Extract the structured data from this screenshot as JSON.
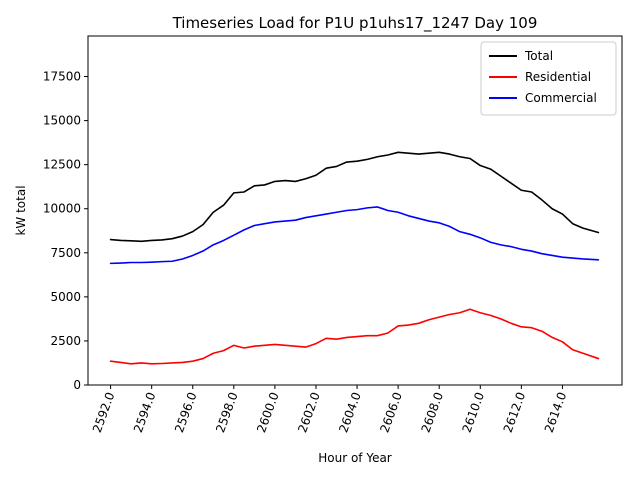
{
  "chart_data": {
    "type": "line",
    "title": "Timeseries Load for P1U p1uhs17_1247  Day 109",
    "xlabel": "Hour of Year",
    "ylabel": "kW total",
    "xlim": [
      2590.9,
      2616.9
    ],
    "ylim": [
      0,
      19800
    ],
    "xticks": [
      2592,
      2594,
      2596,
      2598,
      2600,
      2602,
      2604,
      2606,
      2608,
      2610,
      2612,
      2614
    ],
    "xtick_labels": [
      "2592.0",
      "2594.0",
      "2596.0",
      "2598.0",
      "2600.0",
      "2602.0",
      "2604.0",
      "2606.0",
      "2608.0",
      "2610.0",
      "2612.0",
      "2614.0"
    ],
    "yticks": [
      0,
      2500,
      5000,
      7500,
      10000,
      12500,
      15000,
      17500
    ],
    "ytick_labels": [
      "0",
      "2500",
      "5000",
      "7500",
      "10000",
      "12500",
      "15000",
      "17500"
    ],
    "legend_position": "top-right",
    "x": [
      2592.0,
      2592.5,
      2593.0,
      2593.5,
      2594.0,
      2594.5,
      2595.0,
      2595.5,
      2596.0,
      2596.5,
      2597.0,
      2597.5,
      2598.0,
      2598.5,
      2599.0,
      2599.5,
      2600.0,
      2600.5,
      2601.0,
      2601.5,
      2602.0,
      2602.5,
      2603.0,
      2603.5,
      2604.0,
      2604.5,
      2605.0,
      2605.5,
      2606.0,
      2606.5,
      2607.0,
      2607.5,
      2608.0,
      2608.5,
      2609.0,
      2609.5,
      2610.0,
      2610.5,
      2611.0,
      2611.5,
      2612.0,
      2612.5,
      2613.0,
      2613.5,
      2614.0,
      2614.5,
      2615.0,
      2615.75
    ],
    "series": [
      {
        "name": "Total",
        "color": "#000000",
        "values": [
          8250,
          8200,
          8180,
          8150,
          8200,
          8230,
          8300,
          8450,
          8700,
          9100,
          9800,
          10200,
          10900,
          10950,
          11300,
          11350,
          11550,
          11600,
          11550,
          11700,
          11900,
          12300,
          12400,
          12650,
          12700,
          12800,
          12950,
          13050,
          13200,
          13150,
          13100,
          13150,
          13200,
          13100,
          12950,
          12850,
          12450,
          12250,
          11850,
          11450,
          11050,
          10950,
          10500,
          10000,
          9700,
          9150,
          8900,
          8650
        ]
      },
      {
        "name": "Residential",
        "color": "#ff0000",
        "values": [
          1350,
          1280,
          1200,
          1250,
          1200,
          1220,
          1250,
          1280,
          1350,
          1500,
          1800,
          1950,
          2250,
          2100,
          2200,
          2250,
          2300,
          2250,
          2200,
          2150,
          2350,
          2650,
          2600,
          2700,
          2750,
          2800,
          2800,
          2950,
          3350,
          3400,
          3500,
          3700,
          3850,
          4000,
          4100,
          4300,
          4100,
          3950,
          3750,
          3500,
          3300,
          3250,
          3050,
          2700,
          2450,
          2000,
          1800,
          1500
        ]
      },
      {
        "name": "Commercial",
        "color": "#0000ff",
        "values": [
          6900,
          6920,
          6950,
          6950,
          6970,
          7000,
          7020,
          7150,
          7350,
          7600,
          7950,
          8200,
          8500,
          8800,
          9050,
          9150,
          9250,
          9300,
          9350,
          9500,
          9600,
          9700,
          9800,
          9900,
          9950,
          10050,
          10100,
          9900,
          9800,
          9600,
          9450,
          9300,
          9200,
          9000,
          8700,
          8550,
          8350,
          8100,
          7950,
          7850,
          7700,
          7600,
          7450,
          7350,
          7250,
          7200,
          7150,
          7100
        ]
      }
    ]
  }
}
